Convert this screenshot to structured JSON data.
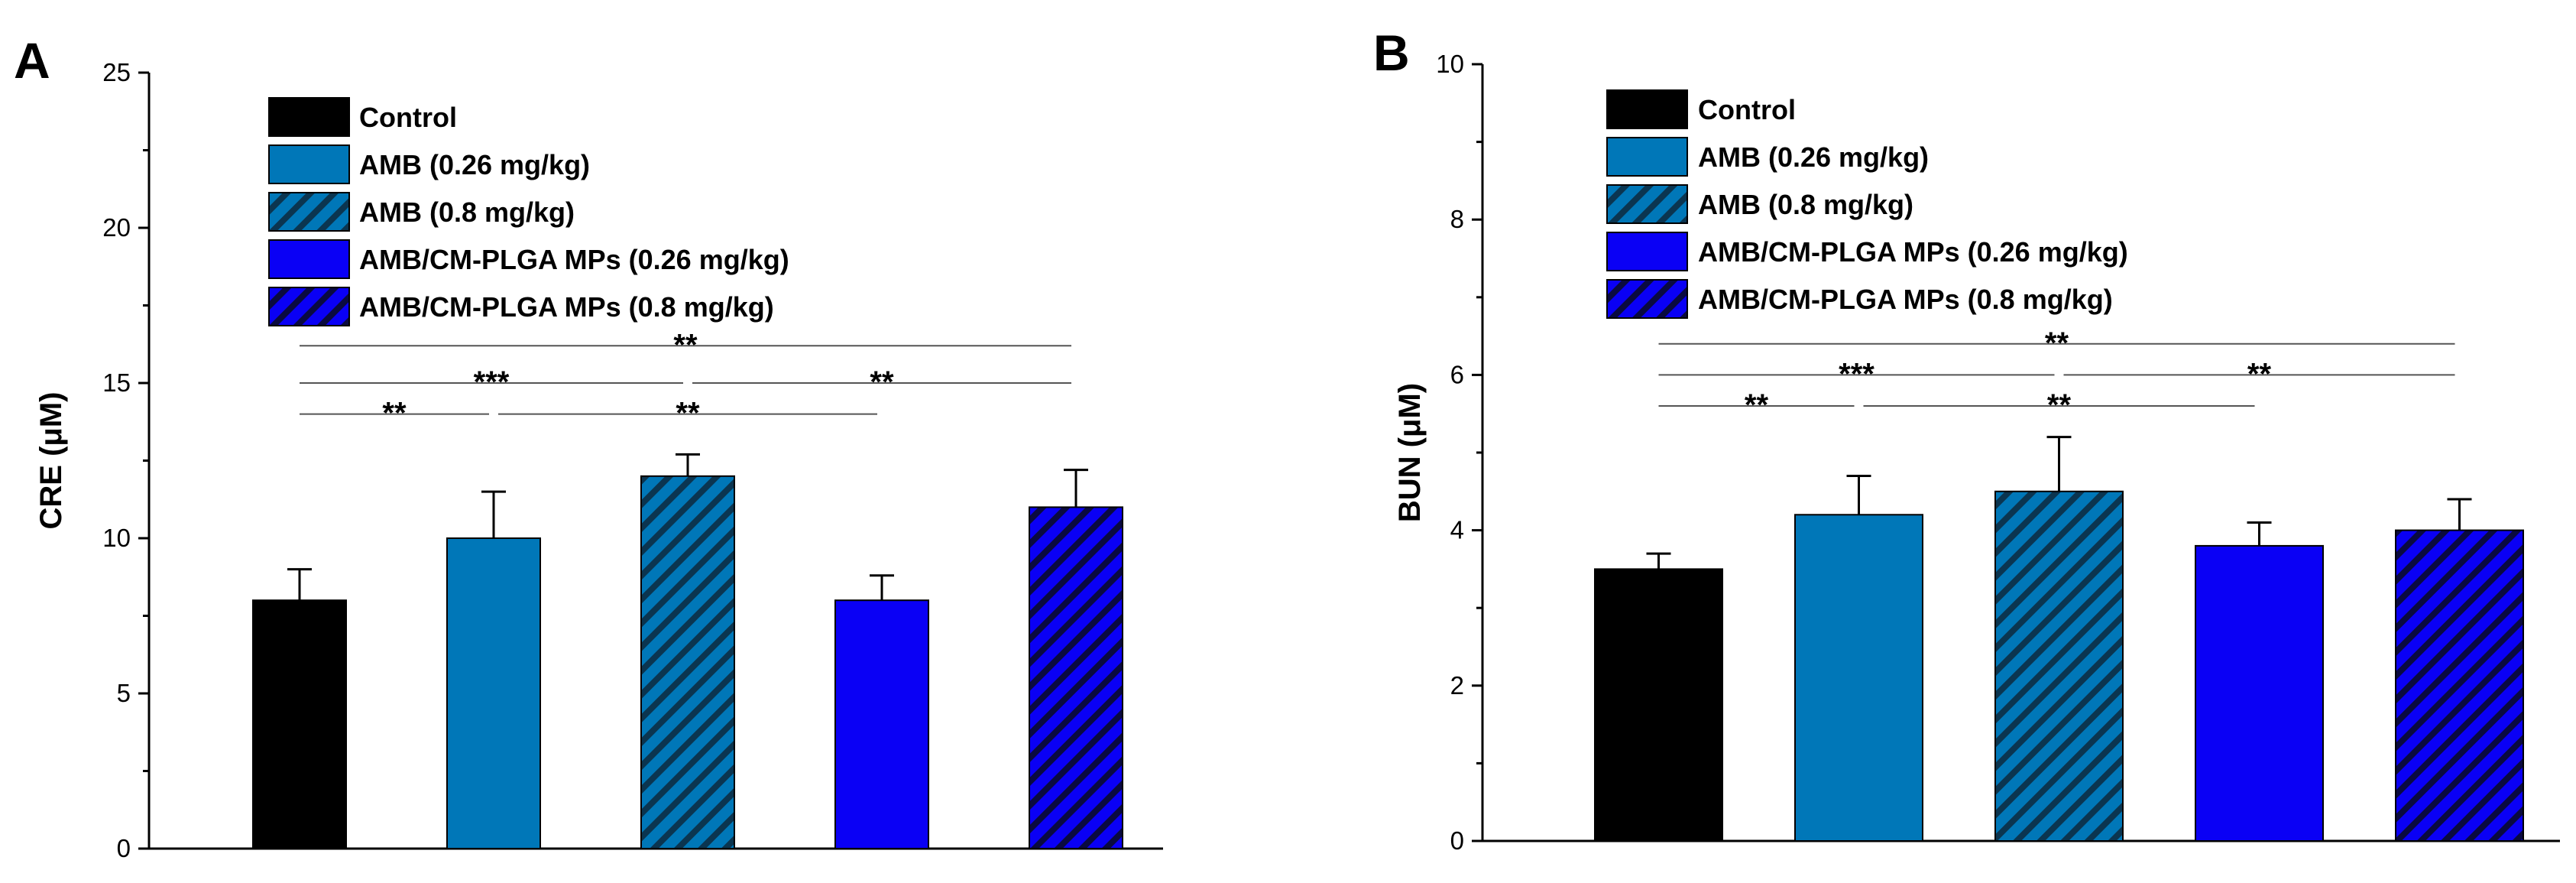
{
  "chart_data": [
    {
      "panel": "A",
      "type": "bar",
      "title": "",
      "xlabel": "",
      "ylabel": "CRE (μM)",
      "ylim": [
        0,
        25
      ],
      "yticks": [
        0,
        5,
        10,
        15,
        20,
        25
      ],
      "categories": [
        "Control",
        "AMB (0.26 mg/kg)",
        "AMB (0.8 mg/kg)",
        "AMB/CM-PLGA MPs (0.26 mg/kg)",
        "AMB/CM-PLGA MPs (0.8 mg/kg)"
      ],
      "values": [
        8,
        10,
        12,
        8,
        11
      ],
      "errors": [
        1.0,
        1.5,
        0.7,
        0.8,
        1.2
      ],
      "colors": [
        "#000000",
        "#0077b8",
        "#0077b8",
        "#0a00f5",
        "#0a00f5"
      ],
      "hatched": [
        false,
        false,
        true,
        false,
        true
      ],
      "legend": [
        "Control",
        "AMB (0.26 mg/kg)",
        "AMB (0.8 mg/kg)",
        "AMB/CM-PLGA MPs (0.26 mg/kg)",
        "AMB/CM-PLGA MPs (0.8 mg/kg)"
      ],
      "legend_position": "top-left",
      "grid": false,
      "significance": [
        {
          "from": 0,
          "to": 4,
          "label": "**",
          "y": 16.2
        },
        {
          "from": 0,
          "to": 2,
          "label": "***",
          "y": 15.0
        },
        {
          "from": 2,
          "to": 4,
          "label": "**",
          "y": 15.0
        },
        {
          "from": 0,
          "to": 1,
          "label": "**",
          "y": 14.0
        },
        {
          "from": 1,
          "to": 3,
          "label": "**",
          "y": 14.0
        }
      ]
    },
    {
      "panel": "B",
      "type": "bar",
      "title": "",
      "xlabel": "",
      "ylabel": "BUN (μM)",
      "ylim": [
        0,
        10
      ],
      "yticks": [
        0,
        2,
        4,
        6,
        8,
        10
      ],
      "categories": [
        "Control",
        "AMB (0.26 mg/kg)",
        "AMB (0.8 mg/kg)",
        "AMB/CM-PLGA MPs (0.26 mg/kg)",
        "AMB/CM-PLGA MPs (0.8 mg/kg)"
      ],
      "values": [
        3.5,
        4.2,
        4.5,
        3.8,
        4.0
      ],
      "errors": [
        0.2,
        0.5,
        0.7,
        0.3,
        0.4
      ],
      "colors": [
        "#000000",
        "#0077b8",
        "#0077b8",
        "#0a00f5",
        "#0a00f5"
      ],
      "hatched": [
        false,
        false,
        true,
        false,
        true
      ],
      "legend": [
        "Control",
        "AMB (0.26 mg/kg)",
        "AMB (0.8 mg/kg)",
        "AMB/CM-PLGA MPs (0.26 mg/kg)",
        "AMB/CM-PLGA MPs (0.8 mg/kg)"
      ],
      "legend_position": "top-left",
      "grid": false,
      "significance": [
        {
          "from": 0,
          "to": 4,
          "label": "**",
          "y": 6.4
        },
        {
          "from": 0,
          "to": 2,
          "label": "***",
          "y": 6.0
        },
        {
          "from": 2,
          "to": 4,
          "label": "**",
          "y": 6.0
        },
        {
          "from": 0,
          "to": 1,
          "label": "**",
          "y": 5.6
        },
        {
          "from": 1,
          "to": 3,
          "label": "**",
          "y": 5.6
        }
      ]
    }
  ]
}
